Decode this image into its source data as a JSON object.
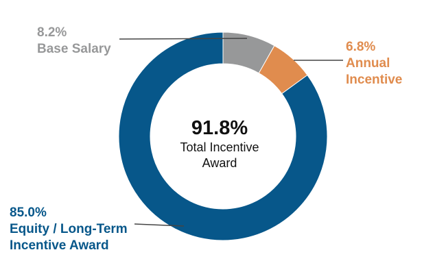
{
  "chart_data": {
    "type": "pie",
    "donut": true,
    "title": "",
    "slices": [
      {
        "name": "Base Salary",
        "value": 8.2,
        "label_value": "8.2%",
        "label_lines": [
          "Base Salary"
        ],
        "color": "#979899"
      },
      {
        "name": "Annual Incentive",
        "value": 6.8,
        "label_value": "6.8%",
        "label_lines": [
          "Annual",
          "Incentive"
        ],
        "color": "#E08C4E"
      },
      {
        "name": "Equity / Long-Term Incentive Award",
        "value": 85.0,
        "label_value": "85.0%",
        "label_lines": [
          "Equity / Long-Term",
          "Incentive Award"
        ],
        "color": "#07578A"
      }
    ],
    "center": {
      "value": "91.8%",
      "caption_lines": [
        "Total Incentive",
        "Award"
      ]
    }
  },
  "colors": {
    "leader_line": "#444444",
    "background": "#ffffff",
    "center_text": "#111111"
  }
}
